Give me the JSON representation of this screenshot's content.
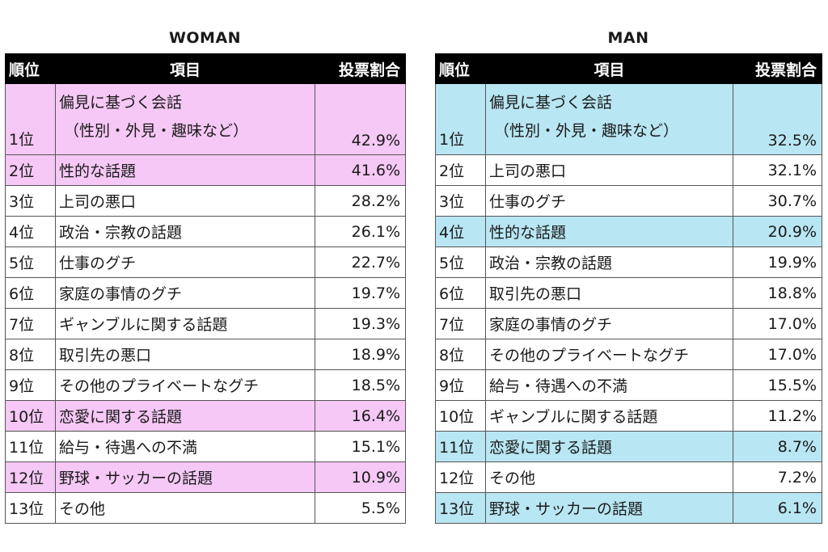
{
  "chart_data": [
    {
      "type": "table",
      "title": "WOMAN",
      "headers": [
        "順位",
        "項目",
        "投票割合"
      ],
      "highlight_color": "#f5c8f5",
      "rows": [
        {
          "rank": "1位",
          "item": "偏見に基づく会話",
          "item2": "（性別・外見・趣味など）",
          "pct": "42.9%",
          "value": 42.9,
          "highlight": true
        },
        {
          "rank": "2位",
          "item": "性的な話題",
          "pct": "41.6%",
          "value": 41.6,
          "highlight": true
        },
        {
          "rank": "3位",
          "item": "上司の悪口",
          "pct": "28.2%",
          "value": 28.2,
          "highlight": false
        },
        {
          "rank": "4位",
          "item": "政治・宗教の話題",
          "pct": "26.1%",
          "value": 26.1,
          "highlight": false
        },
        {
          "rank": "5位",
          "item": "仕事のグチ",
          "pct": "22.7%",
          "value": 22.7,
          "highlight": false
        },
        {
          "rank": "6位",
          "item": "家庭の事情のグチ",
          "pct": "19.7%",
          "value": 19.7,
          "highlight": false
        },
        {
          "rank": "7位",
          "item": "ギャンブルに関する話題",
          "pct": "19.3%",
          "value": 19.3,
          "highlight": false
        },
        {
          "rank": "8位",
          "item": "取引先の悪口",
          "pct": "18.9%",
          "value": 18.9,
          "highlight": false
        },
        {
          "rank": "9位",
          "item": "その他のプライベートなグチ",
          "pct": "18.5%",
          "value": 18.5,
          "highlight": false
        },
        {
          "rank": "10位",
          "item": "恋愛に関する話題",
          "pct": "16.4%",
          "value": 16.4,
          "highlight": true
        },
        {
          "rank": "11位",
          "item": "給与・待遇への不満",
          "pct": "15.1%",
          "value": 15.1,
          "highlight": false
        },
        {
          "rank": "12位",
          "item": "野球・サッカーの話題",
          "pct": "10.9%",
          "value": 10.9,
          "highlight": true
        },
        {
          "rank": "13位",
          "item": "その他",
          "pct": "5.5%",
          "value": 5.5,
          "highlight": false
        }
      ]
    },
    {
      "type": "table",
      "title": "MAN",
      "headers": [
        "順位",
        "項目",
        "投票割合"
      ],
      "highlight_color": "#b8e6f3",
      "rows": [
        {
          "rank": "1位",
          "item": "偏見に基づく会話",
          "item2": "（性別・外見・趣味など）",
          "pct": "32.5%",
          "value": 32.5,
          "highlight": true
        },
        {
          "rank": "2位",
          "item": "上司の悪口",
          "pct": "32.1%",
          "value": 32.1,
          "highlight": false
        },
        {
          "rank": "3位",
          "item": "仕事のグチ",
          "pct": "30.7%",
          "value": 30.7,
          "highlight": false
        },
        {
          "rank": "4位",
          "item": "性的な話題",
          "pct": "20.9%",
          "value": 20.9,
          "highlight": true
        },
        {
          "rank": "5位",
          "item": "政治・宗教の話題",
          "pct": "19.9%",
          "value": 19.9,
          "highlight": false
        },
        {
          "rank": "6位",
          "item": "取引先の悪口",
          "pct": "18.8%",
          "value": 18.8,
          "highlight": false
        },
        {
          "rank": "7位",
          "item": "家庭の事情のグチ",
          "pct": "17.0%",
          "value": 17.0,
          "highlight": false
        },
        {
          "rank": "8位",
          "item": "その他のプライベートなグチ",
          "pct": "17.0%",
          "value": 17.0,
          "highlight": false
        },
        {
          "rank": "9位",
          "item": "給与・待遇への不満",
          "pct": "15.5%",
          "value": 15.5,
          "highlight": false
        },
        {
          "rank": "10位",
          "item": "ギャンブルに関する話題",
          "pct": "11.2%",
          "value": 11.2,
          "highlight": false
        },
        {
          "rank": "11位",
          "item": "恋愛に関する話題",
          "pct": "8.7%",
          "value": 8.7,
          "highlight": true
        },
        {
          "rank": "12位",
          "item": "その他",
          "pct": "7.2%",
          "value": 7.2,
          "highlight": false
        },
        {
          "rank": "13位",
          "item": "野球・サッカーの話題",
          "pct": "6.1%",
          "value": 6.1,
          "highlight": true
        }
      ]
    }
  ]
}
